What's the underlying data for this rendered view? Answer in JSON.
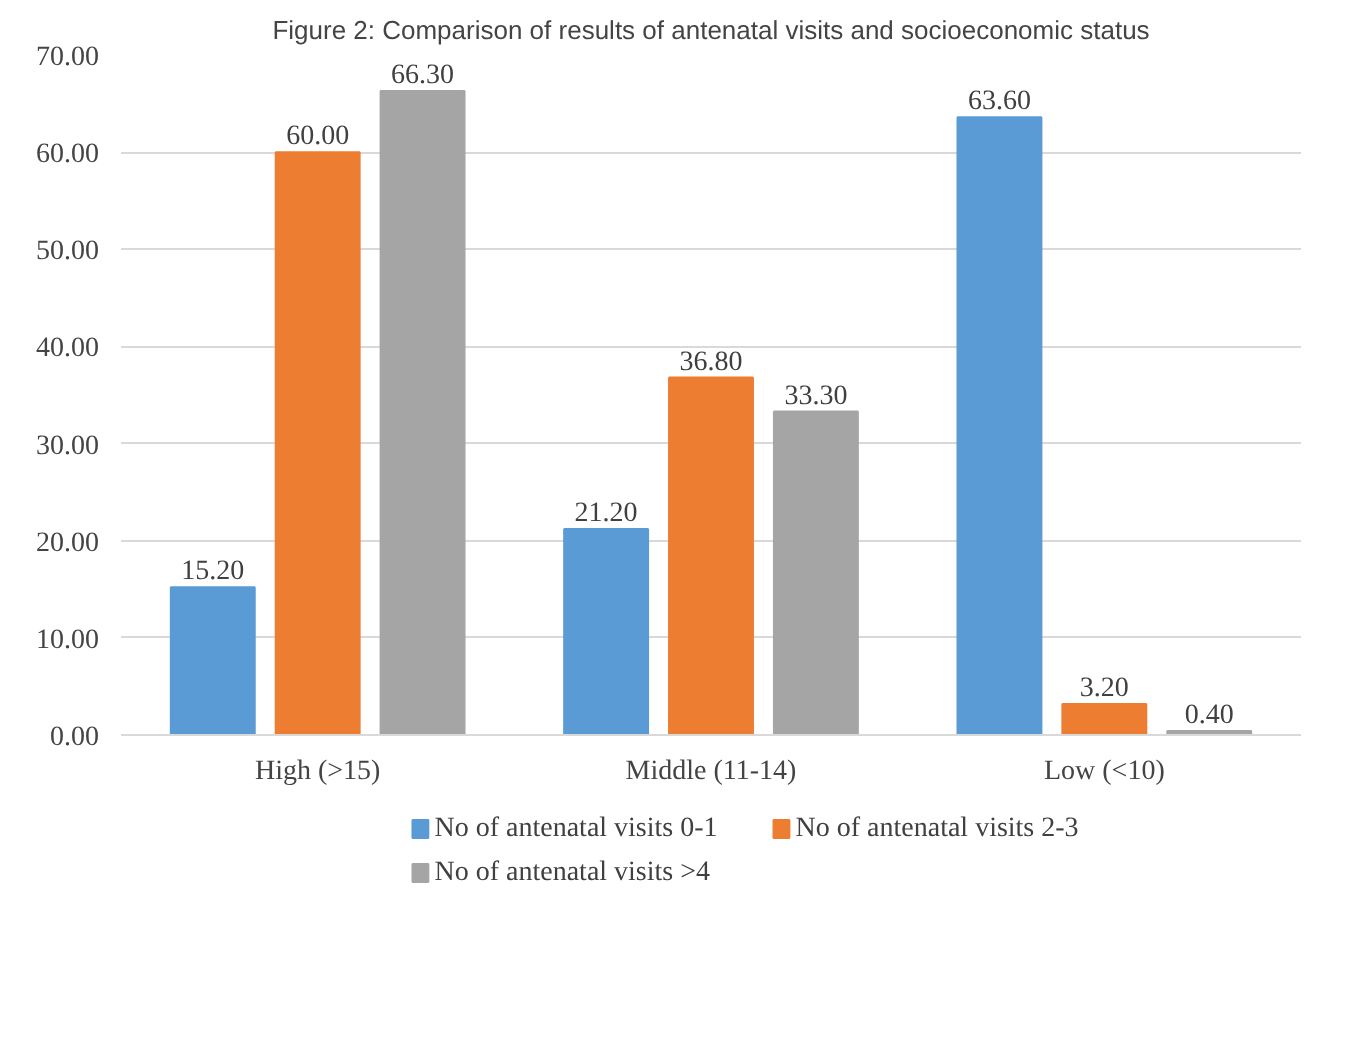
{
  "chart_data": {
    "type": "bar",
    "title": "Figure 2: Comparison of results of antenatal visits and socioeconomic status",
    "categories": [
      "High (>15)",
      "Middle (11-14)",
      "Low (<10)"
    ],
    "series": [
      {
        "name": "No of antenatal visits 0-1",
        "color": "#5b9bd5",
        "values": [
          15.2,
          21.2,
          63.6
        ],
        "value_labels": [
          "15.20",
          "21.20",
          "63.60"
        ]
      },
      {
        "name": "No of antenatal visits 2-3",
        "color": "#ed7d31",
        "values": [
          60.0,
          36.8,
          3.2
        ],
        "value_labels": [
          "60.00",
          "36.80",
          "3.20"
        ]
      },
      {
        "name": "No of antenatal visits >4",
        "color": "#a5a5a5",
        "values": [
          66.3,
          33.3,
          0.4
        ],
        "value_labels": [
          "66.30",
          "33.30",
          "0.40"
        ]
      }
    ],
    "ylim": [
      0,
      70
    ],
    "yticks": [
      {
        "value": 0,
        "label": "0.00"
      },
      {
        "value": 10,
        "label": "10.00"
      },
      {
        "value": 20,
        "label": "20.00"
      },
      {
        "value": 30,
        "label": "30.00"
      },
      {
        "value": 40,
        "label": "40.00"
      },
      {
        "value": 50,
        "label": "50.00"
      },
      {
        "value": 60,
        "label": "60.00"
      },
      {
        "value": 70,
        "label": "70.00"
      }
    ],
    "grid": "y",
    "legend": "bottom"
  }
}
